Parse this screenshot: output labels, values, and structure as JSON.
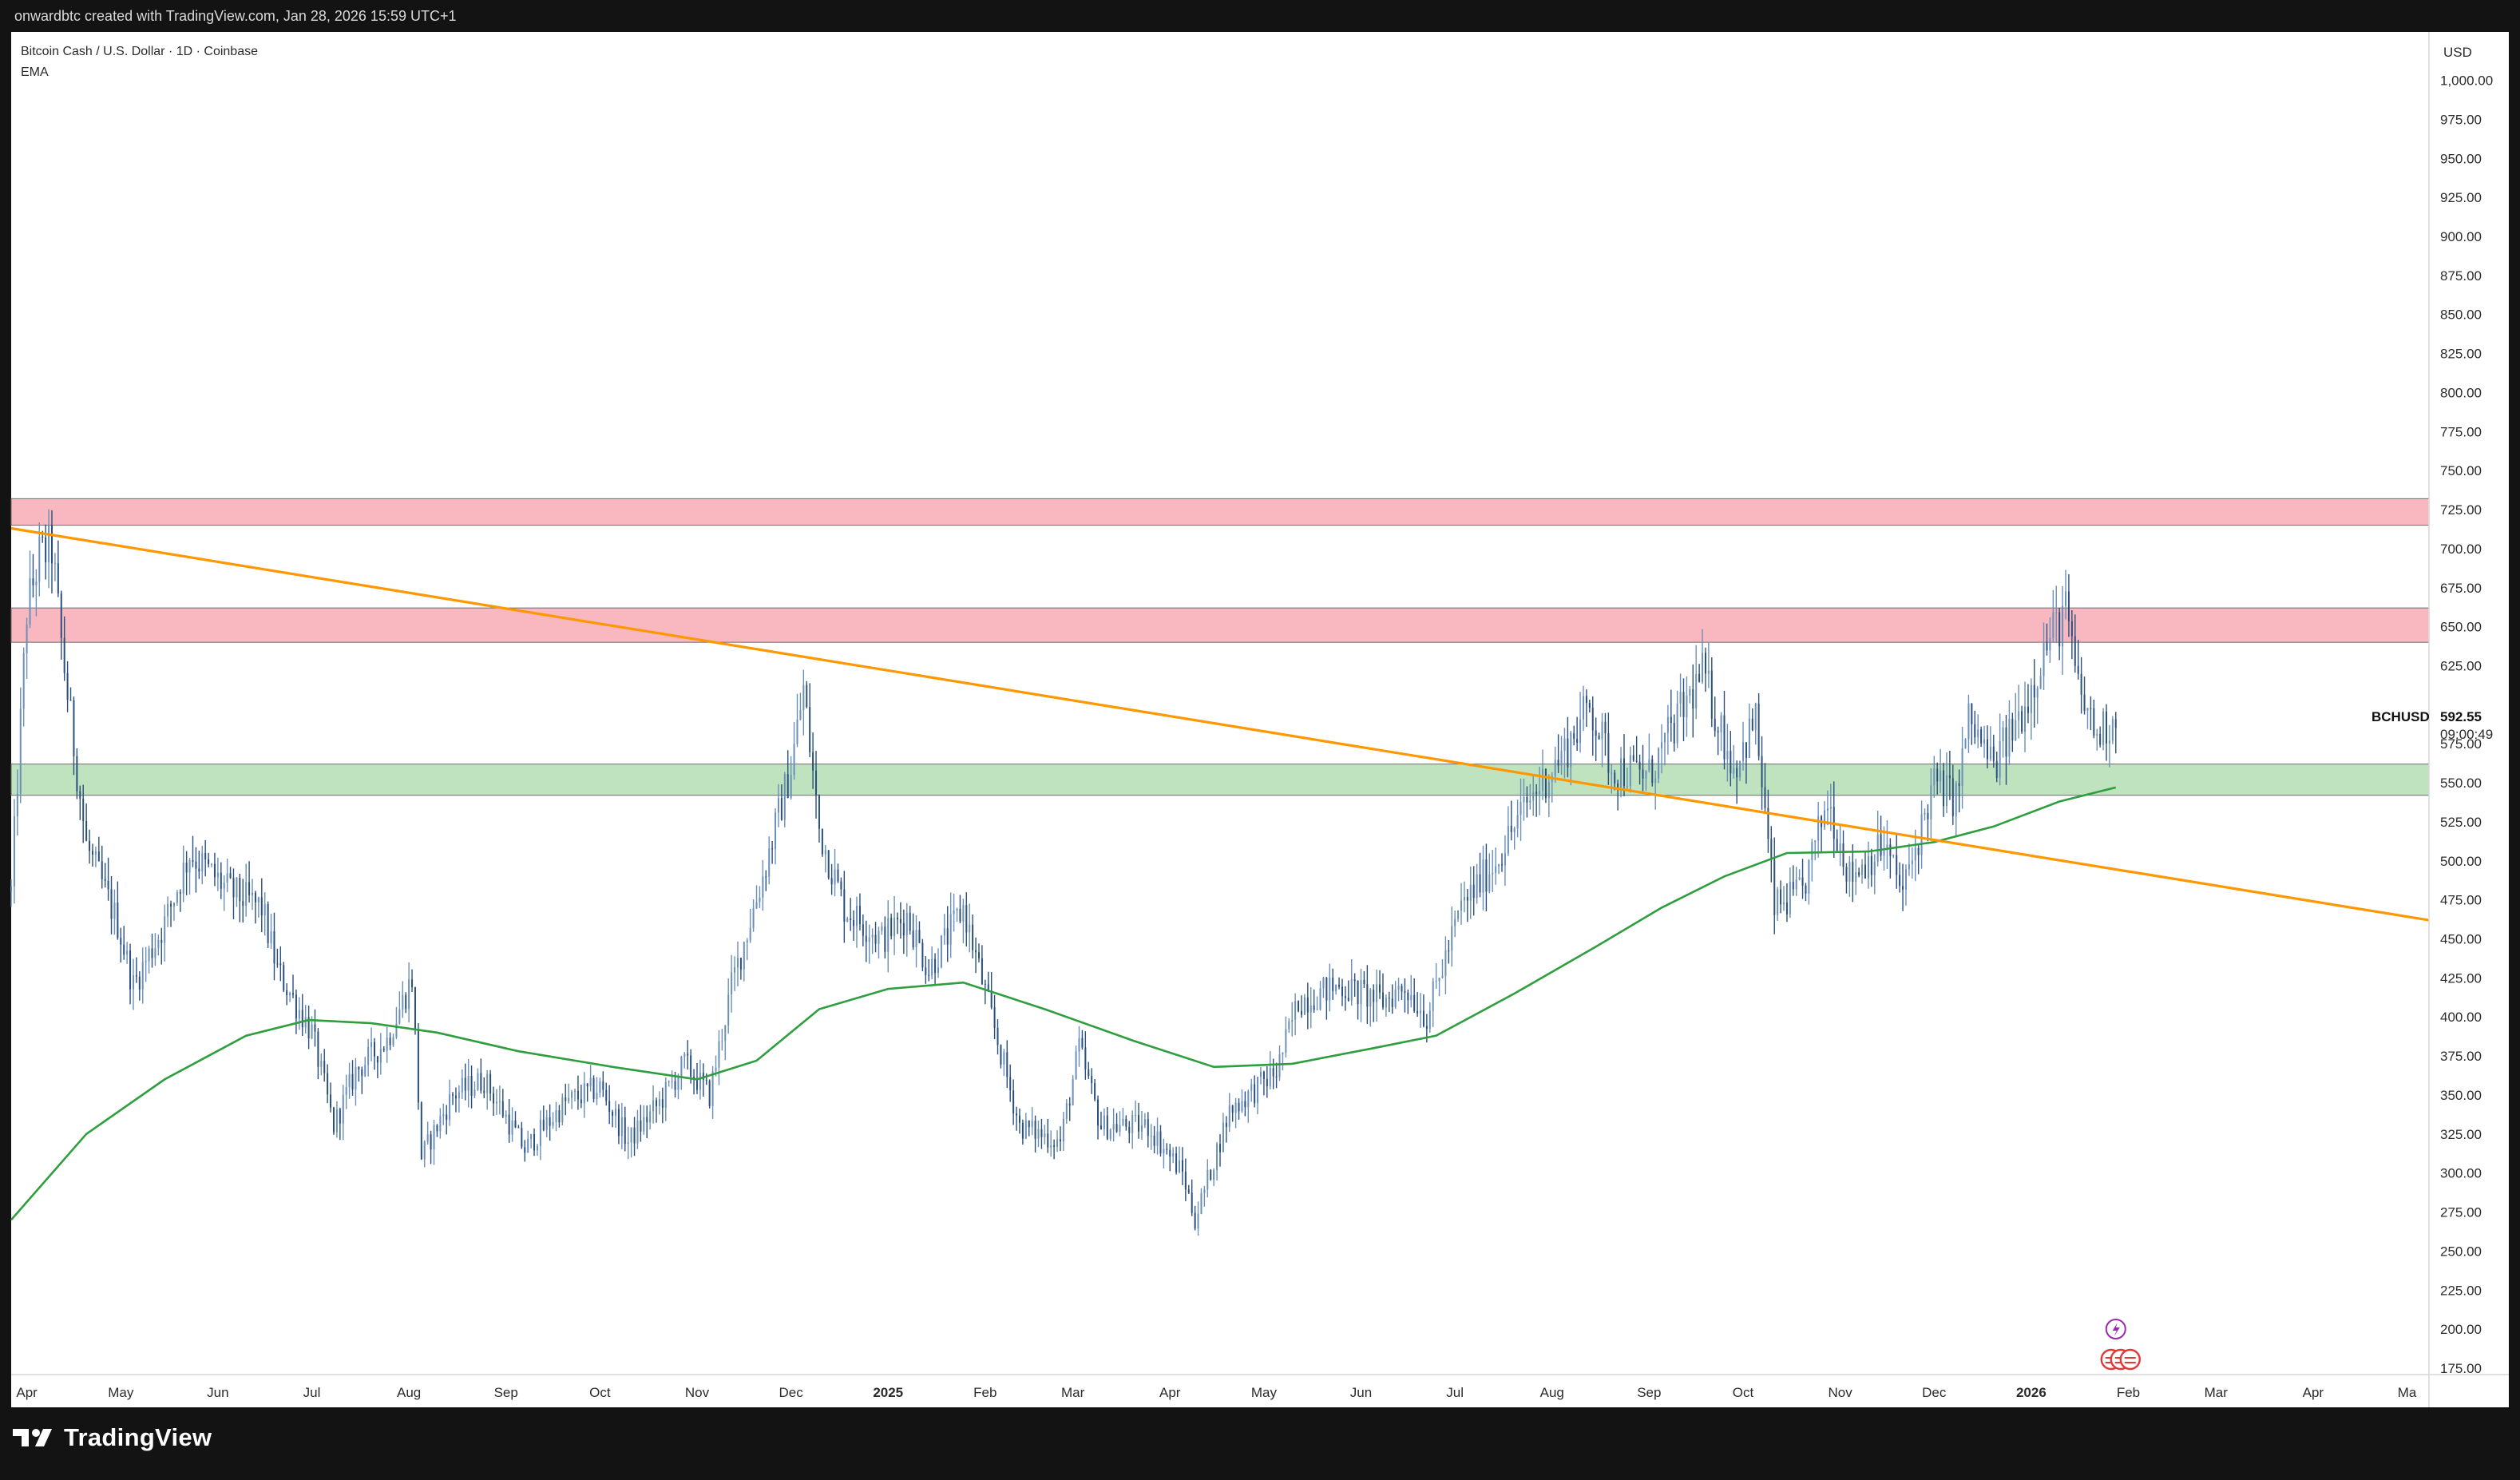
{
  "header": {
    "attribution": "onwardbtc created with TradingView.com, Jan 28, 2026 15:59 UTC+1"
  },
  "legend": {
    "symbol_line": "Bitcoin Cash / U.S. Dollar · 1D · Coinbase",
    "indicator": "EMA"
  },
  "price_axis": {
    "currency": "USD",
    "tick_labels": [
      "1,000.00",
      "975.00",
      "950.00",
      "925.00",
      "900.00",
      "875.00",
      "850.00",
      "825.00",
      "800.00",
      "775.00",
      "750.00",
      "725.00",
      "700.00",
      "675.00",
      "650.00",
      "625.00",
      "600.00",
      "575.00",
      "550.00",
      "525.00",
      "500.00",
      "475.00",
      "450.00",
      "425.00",
      "400.00",
      "375.00",
      "350.00",
      "325.00",
      "300.00",
      "275.00",
      "250.00",
      "225.00",
      "200.00",
      "175.00"
    ],
    "last_price_label": "BCHUSD",
    "last_price": "592.55",
    "countdown": "09:00:49"
  },
  "footer": {
    "brand": "TradingView"
  },
  "colors": {
    "bar": "#2a4f7c",
    "ema": "#2e9e3e",
    "trendline": "#ff9800",
    "resistance_zone": "#f9b8c0",
    "support_zone": "#bfe3bf",
    "background": "#ffffff",
    "frame": "#131313"
  },
  "chart_data": {
    "type": "ohlc",
    "title": "Bitcoin Cash / U.S. Dollar · 1D · Coinbase",
    "timeframe": "1D",
    "ylim": [
      175,
      1010
    ],
    "x_range": [
      "2024-03-27",
      "2026-05-08"
    ],
    "x_ticks": [
      {
        "label": "Apr",
        "date": "2024-04-01",
        "bold": false
      },
      {
        "label": "May",
        "date": "2024-05-01",
        "bold": false
      },
      {
        "label": "Jun",
        "date": "2024-06-01",
        "bold": false
      },
      {
        "label": "Jul",
        "date": "2024-07-01",
        "bold": false
      },
      {
        "label": "Aug",
        "date": "2024-08-01",
        "bold": false
      },
      {
        "label": "Sep",
        "date": "2024-09-01",
        "bold": false
      },
      {
        "label": "Oct",
        "date": "2024-10-01",
        "bold": false
      },
      {
        "label": "Nov",
        "date": "2024-11-01",
        "bold": false
      },
      {
        "label": "Dec",
        "date": "2024-12-01",
        "bold": false
      },
      {
        "label": "2025",
        "date": "2025-01-01",
        "bold": true
      },
      {
        "label": "Feb",
        "date": "2025-02-01",
        "bold": false
      },
      {
        "label": "Mar",
        "date": "2025-03-01",
        "bold": false
      },
      {
        "label": "Apr",
        "date": "2025-04-01",
        "bold": false
      },
      {
        "label": "May",
        "date": "2025-05-01",
        "bold": false
      },
      {
        "label": "Jun",
        "date": "2025-06-01",
        "bold": false
      },
      {
        "label": "Jul",
        "date": "2025-07-01",
        "bold": false
      },
      {
        "label": "Aug",
        "date": "2025-08-01",
        "bold": false
      },
      {
        "label": "Sep",
        "date": "2025-09-01",
        "bold": false
      },
      {
        "label": "Oct",
        "date": "2025-10-01",
        "bold": false
      },
      {
        "label": "Nov",
        "date": "2025-11-01",
        "bold": false
      },
      {
        "label": "Dec",
        "date": "2025-12-01",
        "bold": false
      },
      {
        "label": "2026",
        "date": "2026-01-01",
        "bold": true
      },
      {
        "label": "Feb",
        "date": "2026-02-01",
        "bold": false
      },
      {
        "label": "Mar",
        "date": "2026-03-01",
        "bold": false
      },
      {
        "label": "Apr",
        "date": "2026-04-01",
        "bold": false
      },
      {
        "label": "Ma",
        "date": "2026-05-01",
        "bold": false
      }
    ],
    "price_path": [
      {
        "date": "2024-03-27",
        "price": 480
      },
      {
        "date": "2024-04-01",
        "price": 660
      },
      {
        "date": "2024-04-05",
        "price": 695
      },
      {
        "date": "2024-04-09",
        "price": 700
      },
      {
        "date": "2024-04-12",
        "price": 640
      },
      {
        "date": "2024-04-15",
        "price": 590
      },
      {
        "date": "2024-04-20",
        "price": 510
      },
      {
        "date": "2024-04-30",
        "price": 460
      },
      {
        "date": "2024-05-05",
        "price": 420
      },
      {
        "date": "2024-05-15",
        "price": 460
      },
      {
        "date": "2024-05-23",
        "price": 505
      },
      {
        "date": "2024-06-05",
        "price": 480
      },
      {
        "date": "2024-06-15",
        "price": 470
      },
      {
        "date": "2024-06-20",
        "price": 430
      },
      {
        "date": "2024-07-01",
        "price": 390
      },
      {
        "date": "2024-07-08",
        "price": 330
      },
      {
        "date": "2024-07-15",
        "price": 365
      },
      {
        "date": "2024-07-25",
        "price": 385
      },
      {
        "date": "2024-08-02",
        "price": 425
      },
      {
        "date": "2024-08-05",
        "price": 310
      },
      {
        "date": "2024-08-15",
        "price": 350
      },
      {
        "date": "2024-08-25",
        "price": 360
      },
      {
        "date": "2024-09-07",
        "price": 315
      },
      {
        "date": "2024-09-20",
        "price": 345
      },
      {
        "date": "2024-10-01",
        "price": 355
      },
      {
        "date": "2024-10-10",
        "price": 320
      },
      {
        "date": "2024-10-20",
        "price": 345
      },
      {
        "date": "2024-10-28",
        "price": 370
      },
      {
        "date": "2024-11-05",
        "price": 350
      },
      {
        "date": "2024-11-12",
        "price": 420
      },
      {
        "date": "2024-11-22",
        "price": 490
      },
      {
        "date": "2024-12-01",
        "price": 560
      },
      {
        "date": "2024-12-05",
        "price": 610
      },
      {
        "date": "2024-12-10",
        "price": 520
      },
      {
        "date": "2024-12-18",
        "price": 470
      },
      {
        "date": "2024-12-30",
        "price": 450
      },
      {
        "date": "2025-01-07",
        "price": 465
      },
      {
        "date": "2025-01-14",
        "price": 430
      },
      {
        "date": "2025-01-25",
        "price": 470
      },
      {
        "date": "2025-02-03",
        "price": 400
      },
      {
        "date": "2025-02-12",
        "price": 330
      },
      {
        "date": "2025-02-25",
        "price": 320
      },
      {
        "date": "2025-03-03",
        "price": 380
      },
      {
        "date": "2025-03-10",
        "price": 330
      },
      {
        "date": "2025-03-25",
        "price": 330
      },
      {
        "date": "2025-04-05",
        "price": 300
      },
      {
        "date": "2025-04-09",
        "price": 270
      },
      {
        "date": "2025-04-20",
        "price": 340
      },
      {
        "date": "2025-05-05",
        "price": 365
      },
      {
        "date": "2025-05-12",
        "price": 410
      },
      {
        "date": "2025-05-25",
        "price": 420
      },
      {
        "date": "2025-06-08",
        "price": 410
      },
      {
        "date": "2025-06-15",
        "price": 420
      },
      {
        "date": "2025-06-22",
        "price": 400
      },
      {
        "date": "2025-07-03",
        "price": 470
      },
      {
        "date": "2025-07-14",
        "price": 500
      },
      {
        "date": "2025-07-25",
        "price": 540
      },
      {
        "date": "2025-08-05",
        "price": 570
      },
      {
        "date": "2025-08-13",
        "price": 600
      },
      {
        "date": "2025-08-20",
        "price": 560
      },
      {
        "date": "2025-09-01",
        "price": 555
      },
      {
        "date": "2025-09-10",
        "price": 590
      },
      {
        "date": "2025-09-18",
        "price": 620
      },
      {
        "date": "2025-09-28",
        "price": 560
      },
      {
        "date": "2025-10-05",
        "price": 590
      },
      {
        "date": "2025-10-11",
        "price": 470
      },
      {
        "date": "2025-10-20",
        "price": 480
      },
      {
        "date": "2025-10-28",
        "price": 540
      },
      {
        "date": "2025-11-04",
        "price": 490
      },
      {
        "date": "2025-11-15",
        "price": 510
      },
      {
        "date": "2025-11-21",
        "price": 480
      },
      {
        "date": "2025-12-01",
        "price": 550
      },
      {
        "date": "2025-12-08",
        "price": 540
      },
      {
        "date": "2025-12-12",
        "price": 590
      },
      {
        "date": "2025-12-20",
        "price": 560
      },
      {
        "date": "2025-12-30",
        "price": 600
      },
      {
        "date": "2026-01-06",
        "price": 640
      },
      {
        "date": "2026-01-12",
        "price": 660
      },
      {
        "date": "2026-01-16",
        "price": 610
      },
      {
        "date": "2026-01-22",
        "price": 580
      },
      {
        "date": "2026-01-28",
        "price": 592.55
      }
    ],
    "ema": [
      {
        "date": "2024-03-27",
        "value": 270
      },
      {
        "date": "2024-04-20",
        "value": 325
      },
      {
        "date": "2024-05-15",
        "value": 360
      },
      {
        "date": "2024-06-10",
        "value": 388
      },
      {
        "date": "2024-06-30",
        "value": 398
      },
      {
        "date": "2024-07-20",
        "value": 396
      },
      {
        "date": "2024-08-10",
        "value": 390
      },
      {
        "date": "2024-09-05",
        "value": 378
      },
      {
        "date": "2024-10-05",
        "value": 368
      },
      {
        "date": "2024-11-01",
        "value": 360
      },
      {
        "date": "2024-11-20",
        "value": 372
      },
      {
        "date": "2024-12-10",
        "value": 405
      },
      {
        "date": "2025-01-01",
        "value": 418
      },
      {
        "date": "2025-01-25",
        "value": 422
      },
      {
        "date": "2025-02-20",
        "value": 405
      },
      {
        "date": "2025-03-20",
        "value": 385
      },
      {
        "date": "2025-04-15",
        "value": 368
      },
      {
        "date": "2025-05-10",
        "value": 370
      },
      {
        "date": "2025-06-05",
        "value": 380
      },
      {
        "date": "2025-06-25",
        "value": 388
      },
      {
        "date": "2025-07-20",
        "value": 415
      },
      {
        "date": "2025-08-15",
        "value": 445
      },
      {
        "date": "2025-09-05",
        "value": 470
      },
      {
        "date": "2025-09-25",
        "value": 490
      },
      {
        "date": "2025-10-15",
        "value": 505
      },
      {
        "date": "2025-11-10",
        "value": 506
      },
      {
        "date": "2025-12-01",
        "value": 512
      },
      {
        "date": "2025-12-20",
        "value": 522
      },
      {
        "date": "2026-01-10",
        "value": 538
      },
      {
        "date": "2026-01-28",
        "value": 547
      }
    ],
    "trendline": {
      "from": {
        "date": "2024-03-27",
        "price": 713
      },
      "to": {
        "date": "2026-05-08",
        "price": 462
      }
    },
    "zones": [
      {
        "name": "resistance-upper",
        "low": 715,
        "high": 732,
        "color": "#f9b8c0"
      },
      {
        "name": "resistance-lower",
        "low": 640,
        "high": 662,
        "color": "#f9b8c0"
      },
      {
        "name": "support",
        "low": 542,
        "high": 562,
        "color": "#bfe3bf"
      }
    ],
    "last_price": 592.55,
    "grid": false,
    "legend_position": "top-left"
  }
}
